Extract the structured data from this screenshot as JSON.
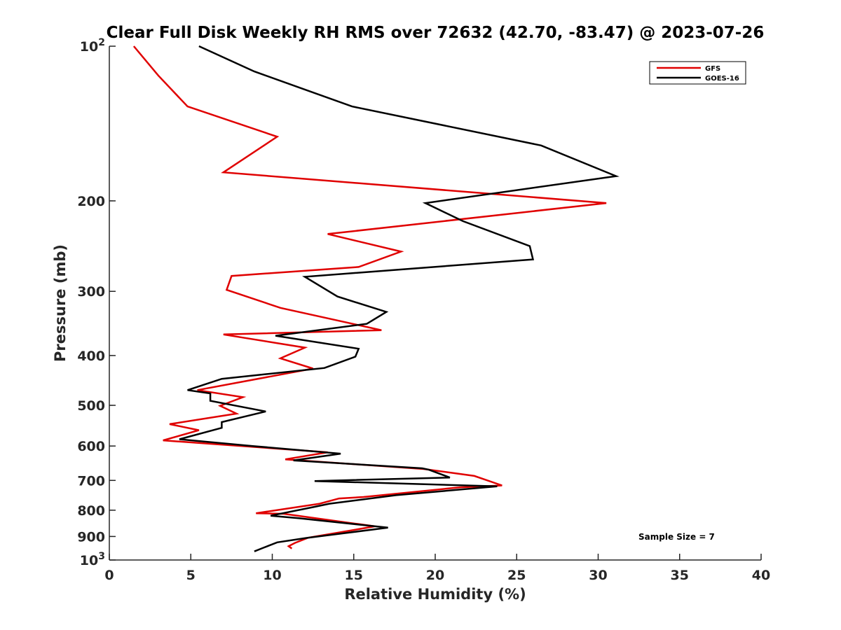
{
  "chart_data": {
    "type": "line",
    "title": "Clear Full Disk Weekly RH RMS over 72632 (42.70, -83.47) @ 2023-07-26",
    "xlabel": "Relative Humidity (%)",
    "ylabel": "Pressure (mb)",
    "xlim": [
      0,
      40
    ],
    "ylim": [
      100,
      1000
    ],
    "yscale": "log",
    "y_reversed": true,
    "grid": false,
    "legend_position": "top-right",
    "x_ticks": [
      0,
      5,
      10,
      15,
      20,
      25,
      30,
      35,
      40
    ],
    "y_ticks": [
      {
        "value": 100,
        "base": "10",
        "exp": "2"
      },
      {
        "value": 200,
        "label": "200"
      },
      {
        "value": 300,
        "label": "300"
      },
      {
        "value": 400,
        "label": "400"
      },
      {
        "value": 500,
        "label": "500"
      },
      {
        "value": 600,
        "label": "600"
      },
      {
        "value": 700,
        "label": "700"
      },
      {
        "value": 800,
        "label": "800"
      },
      {
        "value": 900,
        "label": "900"
      },
      {
        "value": 1000,
        "base": "10",
        "exp": "3"
      }
    ],
    "annotation": "Sample Size = 7",
    "series": [
      {
        "name": "GFS",
        "color": "#e00000",
        "points": [
          [
            1.5,
            100
          ],
          [
            3.0,
            114
          ],
          [
            4.8,
            131
          ],
          [
            10.3,
            150
          ],
          [
            7.0,
            176
          ],
          [
            30.5,
            202
          ],
          [
            13.4,
            232
          ],
          [
            17.9,
            251
          ],
          [
            15.3,
            269
          ],
          [
            7.5,
            280
          ],
          [
            7.2,
            298
          ],
          [
            10.5,
            323
          ],
          [
            16.7,
            357
          ],
          [
            7.0,
            364
          ],
          [
            12.0,
            386
          ],
          [
            10.5,
            405
          ],
          [
            12.5,
            424
          ],
          [
            5.4,
            467
          ],
          [
            8.2,
            482
          ],
          [
            6.8,
            501
          ],
          [
            7.8,
            519
          ],
          [
            3.7,
            544
          ],
          [
            5.5,
            559
          ],
          [
            3.3,
            585
          ],
          [
            13.4,
            617
          ],
          [
            10.8,
            637
          ],
          [
            19.3,
            665
          ],
          [
            22.4,
            686
          ],
          [
            24.1,
            716
          ],
          [
            21.5,
            722
          ],
          [
            15.6,
            754
          ],
          [
            14.1,
            759
          ],
          [
            12.9,
            777
          ],
          [
            9.0,
            811
          ],
          [
            10.7,
            813
          ],
          [
            16.3,
            860
          ],
          [
            15.0,
            874
          ],
          [
            12.2,
            905
          ],
          [
            11.4,
            926
          ],
          [
            11.0,
            940
          ],
          [
            11.2,
            950
          ]
        ]
      },
      {
        "name": "GOES-16",
        "color": "#000000",
        "points": [
          [
            5.5,
            100
          ],
          [
            8.9,
            112
          ],
          [
            14.9,
            131
          ],
          [
            26.5,
            156
          ],
          [
            31.1,
            179
          ],
          [
            19.4,
            202
          ],
          [
            21.7,
            219
          ],
          [
            25.8,
            245
          ],
          [
            26.0,
            260
          ],
          [
            12.0,
            281
          ],
          [
            14.0,
            307
          ],
          [
            17.0,
            329
          ],
          [
            15.8,
            347
          ],
          [
            10.2,
            366
          ],
          [
            15.3,
            388
          ],
          [
            15.1,
            402
          ],
          [
            13.2,
            423
          ],
          [
            6.9,
            444
          ],
          [
            4.8,
            467
          ],
          [
            6.2,
            474
          ],
          [
            6.2,
            490
          ],
          [
            9.6,
            514
          ],
          [
            6.9,
            539
          ],
          [
            6.9,
            553
          ],
          [
            4.3,
            582
          ],
          [
            8.8,
            600
          ],
          [
            14.2,
            621
          ],
          [
            11.3,
            640
          ],
          [
            19.2,
            663
          ],
          [
            19.6,
            667
          ],
          [
            20.9,
            691
          ],
          [
            12.6,
            702
          ],
          [
            23.8,
            719
          ],
          [
            17.6,
            748
          ],
          [
            13.5,
            777
          ],
          [
            12.5,
            789
          ],
          [
            9.9,
            820
          ],
          [
            11.6,
            829
          ],
          [
            17.1,
            865
          ],
          [
            12.1,
            906
          ],
          [
            10.3,
            924
          ],
          [
            9.4,
            948
          ],
          [
            8.9,
            962
          ]
        ]
      }
    ]
  }
}
